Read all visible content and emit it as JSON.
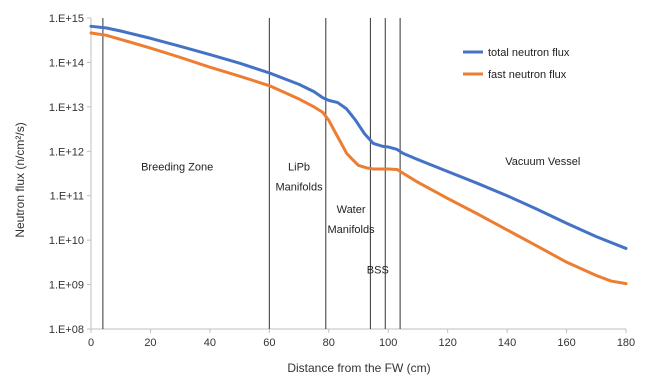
{
  "chart_data": {
    "type": "line",
    "xlabel": "Distance from the FW (cm)",
    "ylabel": "Neutron flux (n/cm²/s)",
    "xlim": [
      0,
      180
    ],
    "ylim": [
      100000000.0,
      1000000000000000.0
    ],
    "yscale": "log",
    "xticks": [
      0,
      20,
      40,
      60,
      80,
      100,
      120,
      140,
      160,
      180
    ],
    "xtick_labels": [
      "0",
      "20",
      "40",
      "60",
      "80",
      "100",
      "120",
      "140",
      "160",
      "180"
    ],
    "yticks": [
      100000000.0,
      1000000000.0,
      10000000000.0,
      100000000000.0,
      1000000000000.0,
      10000000000000.0,
      100000000000000.0,
      1000000000000000.0
    ],
    "ytick_labels": [
      "1.E+08",
      "1.E+09",
      "1.E+10",
      "1.E+11",
      "1.E+12",
      "1.E+13",
      "1.E+14",
      "1.E+15"
    ],
    "grid": false,
    "legend_position": "top-right",
    "series": [
      {
        "name": "total neutron flux",
        "color": "#4472C4",
        "x": [
          0,
          5,
          10,
          20,
          30,
          40,
          50,
          60,
          70,
          75,
          78,
          80,
          83,
          86,
          89,
          92,
          95,
          98,
          100,
          103,
          105,
          110,
          120,
          130,
          140,
          150,
          160,
          170,
          180
        ],
        "y": [
          650000000000000.0,
          600000000000000.0,
          510000000000000.0,
          350000000000000.0,
          230000000000000.0,
          150000000000000.0,
          96000000000000.0,
          58000000000000.0,
          32000000000000.0,
          22000000000000.0,
          16000000000000.0,
          14000000000000.0,
          12500000000000.0,
          9000000000000.0,
          5000000000000.0,
          2500000000000.0,
          1500000000000.0,
          1300000000000.0,
          1250000000000.0,
          1100000000000.0,
          900000000000.0,
          650000000000.0,
          350000000000.0,
          190000000000.0,
          100000000000.0,
          50000000000.0,
          24000000000.0,
          12000000000.0,
          6500000000.0
        ]
      },
      {
        "name": "fast neutron flux",
        "color": "#ED7D31",
        "x": [
          0,
          5,
          10,
          20,
          30,
          40,
          50,
          60,
          70,
          75,
          78,
          80,
          82,
          84,
          86,
          88,
          90,
          93,
          95,
          98,
          100,
          103,
          105,
          110,
          120,
          130,
          140,
          150,
          160,
          170,
          175,
          180
        ],
        "y": [
          460000000000000.0,
          410000000000000.0,
          330000000000000.0,
          210000000000000.0,
          130000000000000.0,
          78000000000000.0,
          49000000000000.0,
          30000000000000.0,
          15000000000000.0,
          10000000000000.0,
          7500000000000.0,
          5000000000000.0,
          2800000000000.0,
          1600000000000.0,
          900000000000.0,
          650000000000.0,
          480000000000.0,
          420000000000.0,
          400000000000.0,
          400000000000.0,
          400000000000.0,
          390000000000.0,
          320000000000.0,
          200000000000.0,
          87000000000.0,
          39000000000.0,
          17000000000.0,
          7400000000.0,
          3200000000.0,
          1600000000.0,
          1200000000.0,
          1050000000.0
        ]
      }
    ],
    "vertical_lines": [
      4,
      60,
      79,
      94,
      99,
      104
    ],
    "annotations": [
      {
        "text": "Breeding Zone",
        "x": 29,
        "y": 450000000000.0
      },
      {
        "text": "LiPb",
        "x": 70,
        "y": 450000000000.0
      },
      {
        "text": "Manifolds",
        "x": 70,
        "y": 160000000000.0
      },
      {
        "text": "Water",
        "x": 87.5,
        "y": 50000000000.0
      },
      {
        "text": "Manifolds",
        "x": 87.5,
        "y": 18000000000.0
      },
      {
        "text": "BSS",
        "x": 96.5,
        "y": 2200000000.0
      },
      {
        "text": "Vacuum Vessel",
        "x": 152,
        "y": 600000000000.0
      }
    ]
  }
}
